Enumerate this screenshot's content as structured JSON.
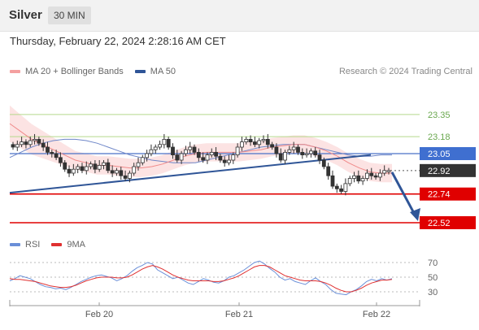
{
  "header": {
    "symbol": "Silver",
    "interval": "30 MIN"
  },
  "datetime": "Thursday, February 22, 2024 2:28:16 AM CET",
  "legend": [
    {
      "label": "MA 20 + Bollinger Bands",
      "color": "#f4a0a0"
    },
    {
      "label": "MA 50",
      "color": "#2f5597"
    }
  ],
  "copyright": "Research © 2024 Trading Central",
  "rsi_legend": [
    {
      "label": "RSI",
      "color": "#6a8fd8"
    },
    {
      "label": "9MA",
      "color": "#e03030"
    }
  ],
  "chart_data": [
    {
      "type": "candlestick",
      "title": "",
      "x_ticks": [
        "Feb 20",
        "Feb 21",
        "Feb 22"
      ],
      "levels": [
        {
          "value": 23.35,
          "label": "23.35",
          "style": "green-line"
        },
        {
          "value": 23.18,
          "label": "23.18",
          "style": "green-line"
        },
        {
          "value": 23.05,
          "label": "23.05",
          "style": "blue-box"
        },
        {
          "value": 22.92,
          "label": "22.92",
          "style": "dark-box"
        },
        {
          "value": 22.74,
          "label": "22.74",
          "style": "red-box"
        },
        {
          "value": 22.52,
          "label": "22.52",
          "style": "red-box"
        }
      ],
      "price_series": [
        23.1,
        23.12,
        23.14,
        23.12,
        23.15,
        23.16,
        23.13,
        23.1,
        23.06,
        23.05,
        23.02,
        22.98,
        22.93,
        22.9,
        22.93,
        22.95,
        22.92,
        22.95,
        22.97,
        22.93,
        22.96,
        22.98,
        22.92,
        22.9,
        22.92,
        22.88,
        22.86,
        22.9,
        22.95,
        22.98,
        23.02,
        23.05,
        23.08,
        23.1,
        23.12,
        23.16,
        23.1,
        23.04,
        23.0,
        23.05,
        23.08,
        23.1,
        23.06,
        23.02,
        23.0,
        23.04,
        23.06,
        23.03,
        23.0,
        22.98,
        23.0,
        23.04,
        23.1,
        23.14,
        23.16,
        23.14,
        23.12,
        23.15,
        23.16,
        23.12,
        23.1,
        23.05,
        23.0,
        23.06,
        23.08,
        23.1,
        23.06,
        23.04,
        23.05,
        23.07,
        23.04,
        23.0,
        22.95,
        22.88,
        22.8,
        22.78,
        22.76,
        22.82,
        22.86,
        22.88,
        22.84,
        22.86,
        22.9,
        22.88,
        22.87,
        22.9,
        22.92,
        22.92
      ],
      "ma50": [
        23.02,
        23.06,
        23.1,
        23.13,
        23.15,
        23.16,
        23.16,
        23.15,
        23.13,
        23.1,
        23.07,
        23.04,
        23.02,
        23.0,
        22.99,
        22.98,
        22.98,
        22.98,
        23.0,
        23.02,
        23.04,
        23.06,
        23.08,
        23.1,
        23.11,
        23.12,
        23.12,
        23.12,
        23.1,
        23.08,
        23.06,
        23.04,
        23.03,
        23.03,
        23.04,
        23.04
      ],
      "ma20": [
        23.28,
        23.22,
        23.16,
        23.12,
        23.08,
        23.04,
        23.0,
        22.98,
        22.96,
        22.96,
        22.95,
        22.94,
        22.94,
        22.95,
        22.97,
        23.0,
        23.03,
        23.05,
        23.06,
        23.06,
        23.06,
        23.06,
        23.07,
        23.08,
        23.1,
        23.11,
        23.12,
        23.12,
        23.1,
        23.07,
        23.03,
        22.98,
        22.94,
        22.91,
        22.9,
        22.9
      ],
      "trendline": {
        "from": 22.75,
        "to": 23.04
      },
      "projection": {
        "from": 22.92,
        "to": 22.52
      }
    },
    {
      "type": "line",
      "title": "",
      "y_ticks": [
        70,
        50,
        30
      ],
      "series": [
        {
          "name": "RSI",
          "values": [
            45,
            48,
            52,
            50,
            48,
            44,
            40,
            37,
            36,
            34,
            35,
            33,
            36,
            40,
            44,
            47,
            50,
            52,
            53,
            51,
            49,
            45,
            48,
            52,
            58,
            63,
            66,
            70,
            68,
            60,
            56,
            52,
            48,
            50,
            46,
            42,
            40,
            44,
            48,
            46,
            43,
            42,
            45,
            50,
            52,
            56,
            60,
            65,
            70,
            72,
            68,
            62,
            57,
            50,
            46,
            48,
            44,
            42,
            40,
            45,
            49,
            44,
            40,
            33,
            28,
            27,
            26,
            30,
            33,
            38,
            44,
            47,
            45,
            48,
            46,
            48
          ]
        },
        {
          "name": "9MA",
          "values": [
            48,
            47,
            47,
            46,
            45,
            44,
            42,
            40,
            38,
            37,
            36,
            36,
            37,
            39,
            42,
            45,
            47,
            49,
            50,
            50,
            50,
            49,
            49,
            50,
            53,
            57,
            61,
            64,
            66,
            64,
            61,
            57,
            53,
            50,
            48,
            46,
            45,
            45,
            45,
            45,
            44,
            44,
            45,
            47,
            49,
            52,
            56,
            60,
            64,
            66,
            66,
            64,
            60,
            56,
            52,
            50,
            48,
            46,
            45,
            45,
            45,
            44,
            42,
            39,
            35,
            32,
            30,
            30,
            32,
            35,
            39,
            42,
            44,
            46,
            46,
            47
          ]
        }
      ]
    }
  ]
}
